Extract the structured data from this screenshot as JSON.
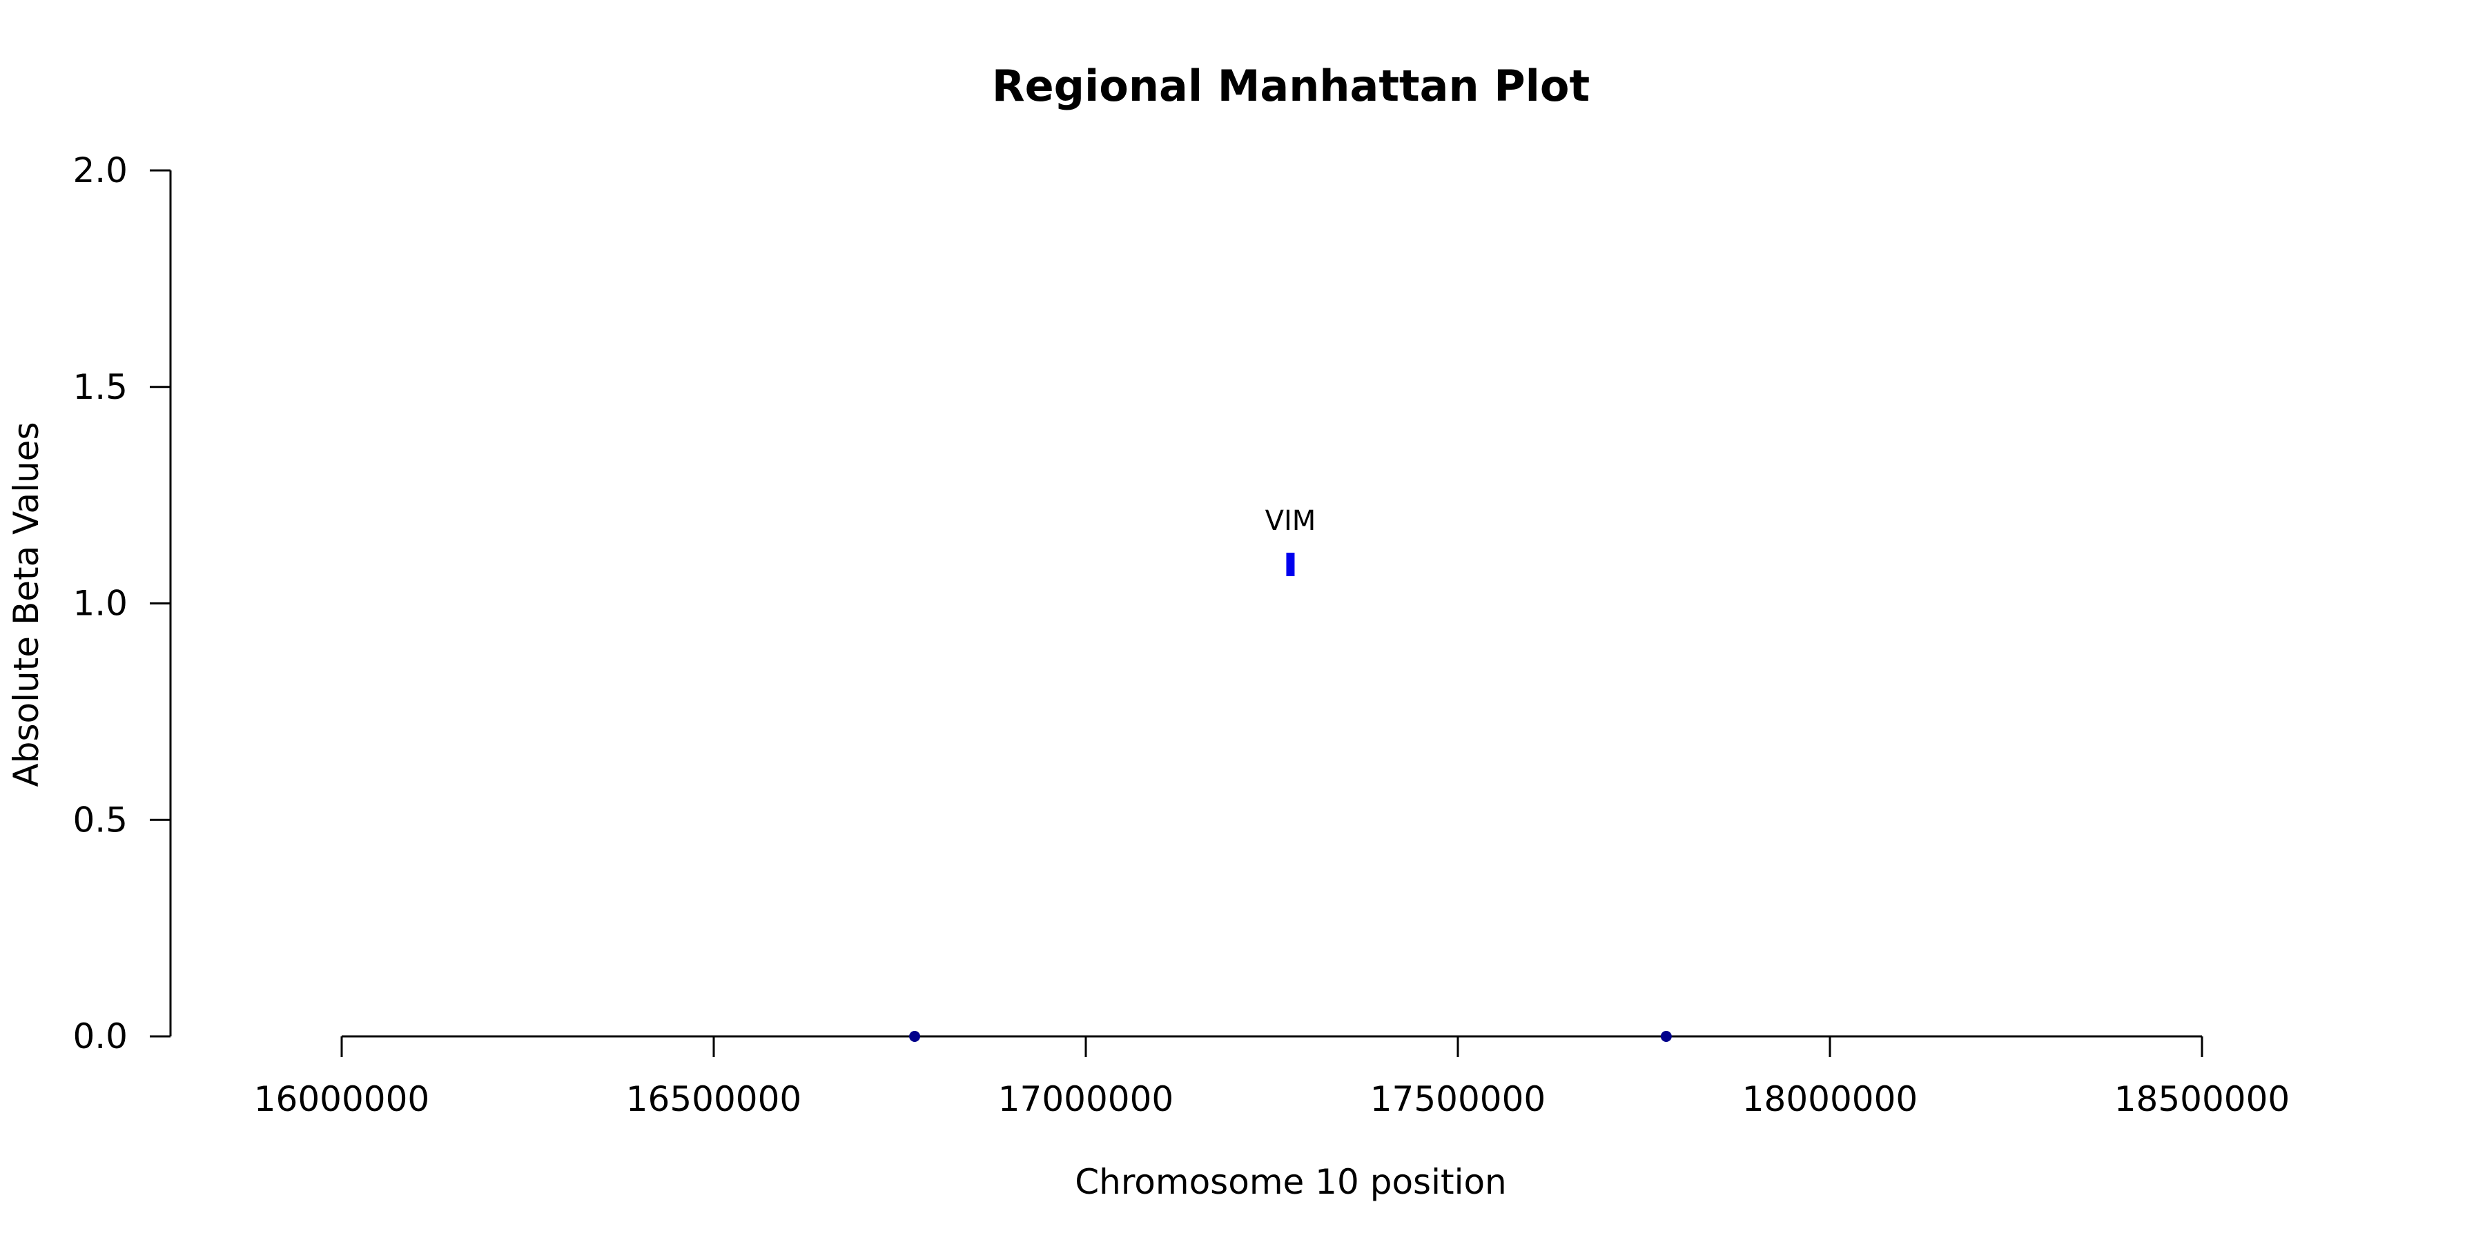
{
  "chart_data": {
    "type": "scatter",
    "title": "Regional Manhattan Plot",
    "xlabel": "Chromosome 10 position",
    "ylabel": "Absolute Beta Values",
    "xlim": [
      16000000,
      18500000
    ],
    "ylim": [
      0,
      2
    ],
    "x_ticks": [
      16000000,
      16500000,
      17000000,
      17500000,
      18000000,
      18500000
    ],
    "x_tick_labels": [
      "16000000",
      "16500000",
      "17000000",
      "17500000",
      "18000000",
      "18500000"
    ],
    "y_ticks": [
      0,
      0.5,
      1,
      1.5,
      2
    ],
    "y_tick_labels": [
      "0.0",
      "0.5",
      "1.0",
      "1.5",
      "2.0"
    ],
    "grid": false,
    "points": [
      {
        "x": 16770000,
        "y": 0.0,
        "color": "#00008b",
        "marker": "circle"
      },
      {
        "x": 17780000,
        "y": 0.0,
        "color": "#00008b",
        "marker": "circle"
      },
      {
        "x": 17275000,
        "y": 1.09,
        "color": "#0000ee",
        "marker": "bar",
        "label": "VIM"
      }
    ]
  }
}
